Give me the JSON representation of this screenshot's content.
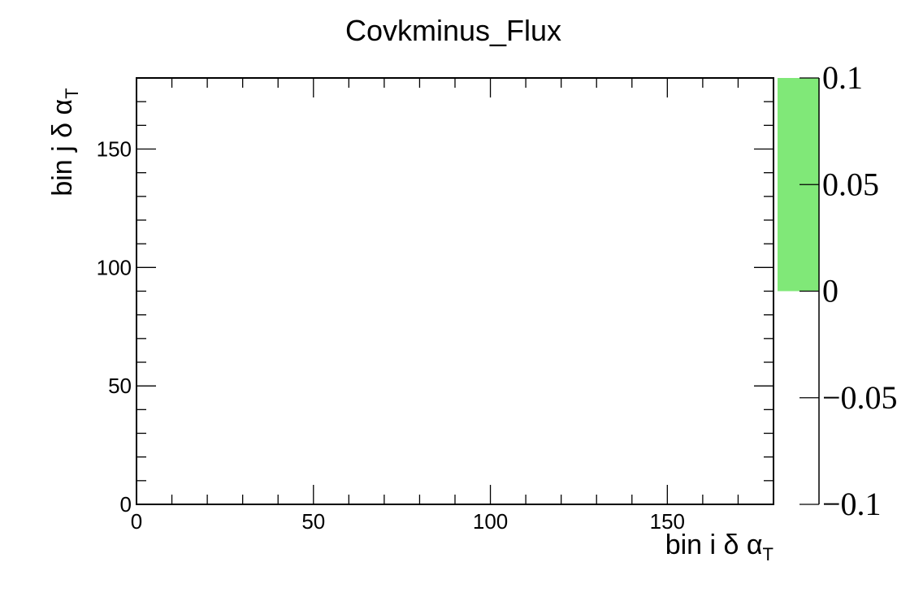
{
  "chart_data": {
    "type": "heatmap",
    "title": "Covkminus_Flux",
    "xlabel": "bin i δ α",
    "xlabel_sub": "T",
    "ylabel": "bin j δ α",
    "ylabel_sub": "T",
    "xlim": [
      0,
      180
    ],
    "ylim": [
      0,
      180
    ],
    "x_ticks": [
      0,
      50,
      100,
      150
    ],
    "y_ticks": [
      0,
      50,
      100,
      150
    ],
    "x_tick_labels": [
      "0",
      "50",
      "100",
      "150"
    ],
    "y_tick_labels": [
      "0",
      "50",
      "100",
      "150"
    ],
    "colorbar": {
      "range": [
        -0.1,
        0.1
      ],
      "ticks": [
        0.1,
        0.05,
        0,
        -0.05,
        -0.1
      ],
      "tick_labels": [
        "0.1",
        "0.05",
        "0",
        "−0.05",
        "−0.1"
      ],
      "filled_range": [
        0,
        0.1
      ],
      "fill_color": "#80e878"
    },
    "cells": [],
    "grid": false,
    "legend": "none"
  }
}
